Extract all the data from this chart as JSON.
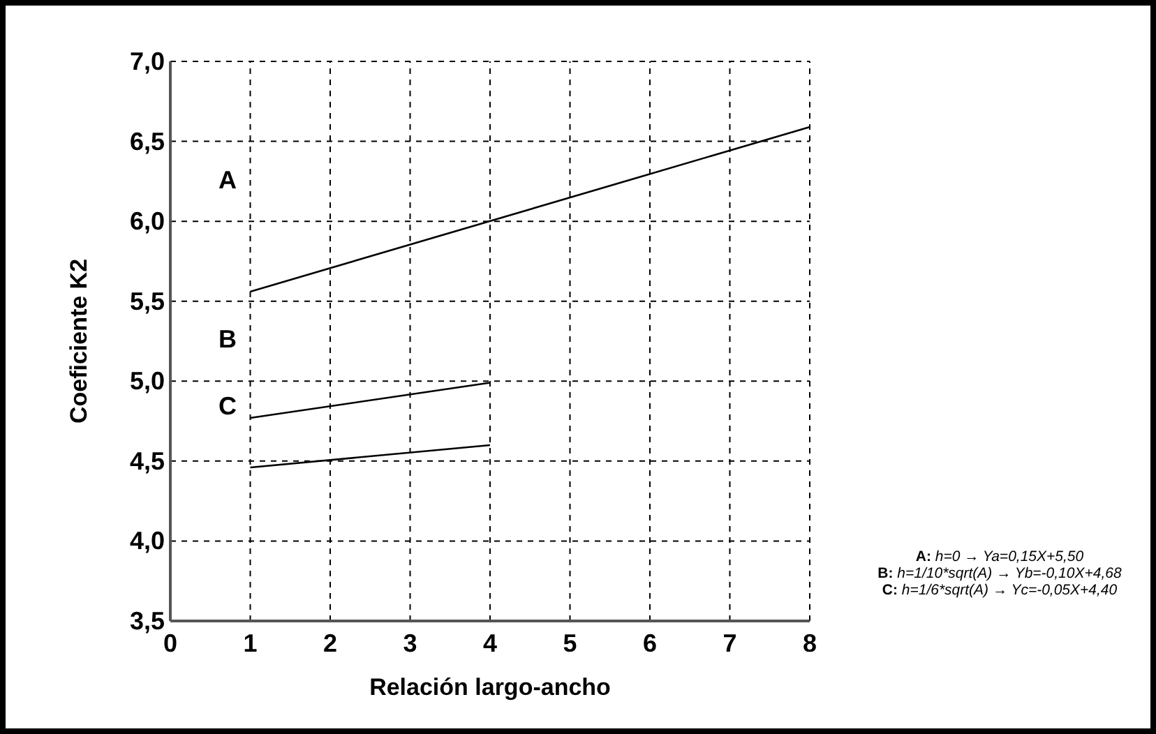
{
  "chart_data": {
    "type": "line",
    "xlabel": "Relación largo-ancho",
    "ylabel": "Coeficiente K2",
    "xlim": [
      0,
      8
    ],
    "ylim": [
      3.5,
      7.0
    ],
    "xticks": [
      0,
      1,
      2,
      3,
      4,
      5,
      6,
      7,
      8
    ],
    "yticks": [
      {
        "value": 3.5,
        "label": "3,5"
      },
      {
        "value": 4.0,
        "label": "4,0"
      },
      {
        "value": 4.5,
        "label": "4,5"
      },
      {
        "value": 5.0,
        "label": "5,0"
      },
      {
        "value": 5.5,
        "label": "5,5"
      },
      {
        "value": 6.0,
        "label": "6,0"
      },
      {
        "value": 6.5,
        "label": "6,5"
      },
      {
        "value": 7.0,
        "label": "7,0"
      }
    ],
    "grid": true,
    "marker": "none",
    "line_style": "solid",
    "series": [
      {
        "color": "#000000",
        "x": [
          1,
          8
        ],
        "values": [
          5.56,
          6.59
        ]
      },
      {
        "color": "#000000",
        "x": [
          1,
          4
        ],
        "values": [
          4.77,
          4.99
        ]
      },
      {
        "color": "#000000",
        "x": [
          1,
          4
        ],
        "values": [
          4.46,
          4.6
        ]
      }
    ],
    "annotations": [
      "A",
      "B",
      "C",
      "A: h=0 → Ya=0,15X+5,50",
      "B: h=1/10*sqrt(A) → Yb=-0,10X+4,68",
      "C: h=1/6*sqrt(A) → Yc=-0,05X+4,40"
    ]
  }
}
